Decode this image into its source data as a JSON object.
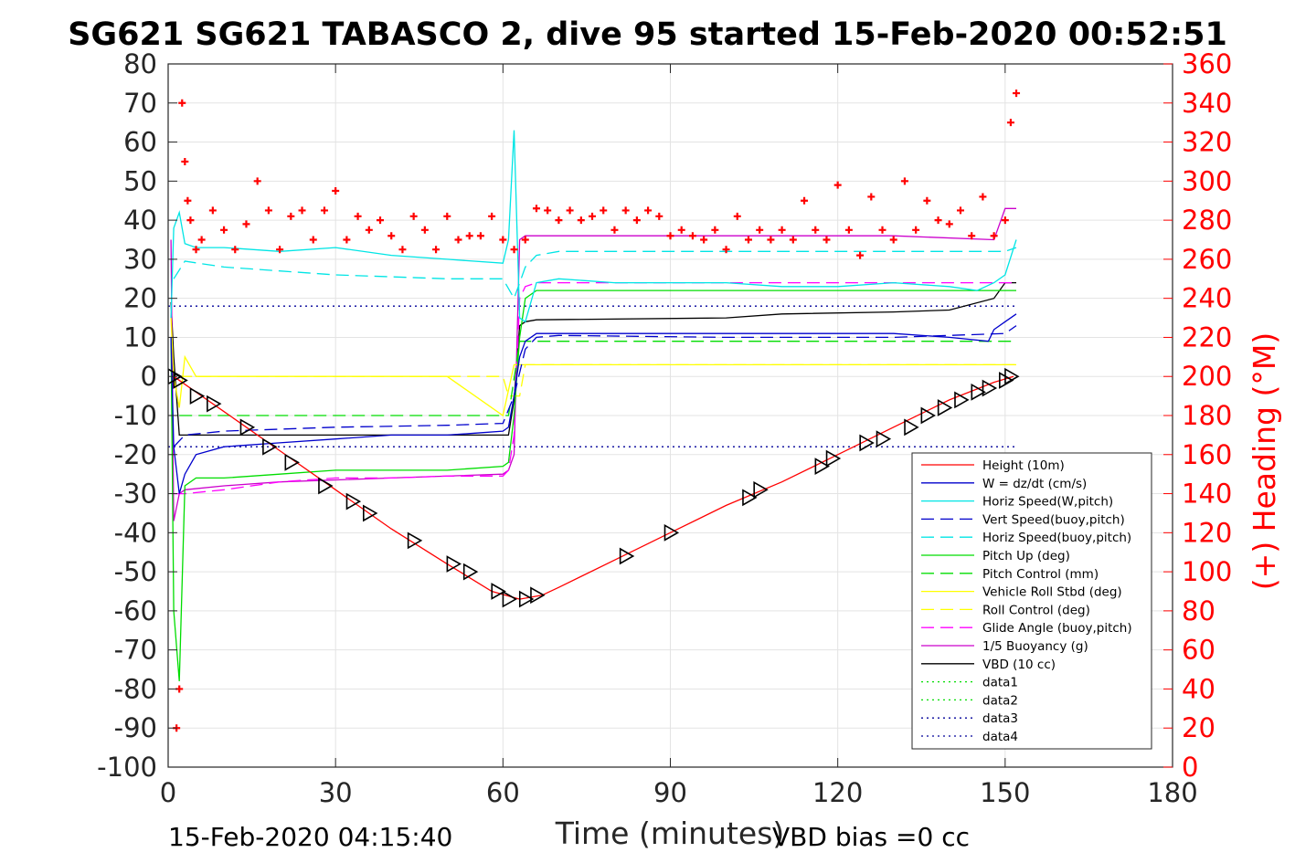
{
  "chart_data": {
    "type": "line",
    "title": "SG621 SG621 TABASCO 2, dive 95 started 15-Feb-2020 00:52:51",
    "xlabel": "Time (minutes)",
    "ylabel": "",
    "y2label": "(+) Heading (°M)",
    "xlim": [
      0,
      180
    ],
    "ylim": [
      -100,
      80
    ],
    "y2lim": [
      0,
      360
    ],
    "xticks": [
      "0",
      "30",
      "60",
      "90",
      "120",
      "150",
      "180"
    ],
    "yticks": [
      "80",
      "70",
      "60",
      "50",
      "40",
      "30",
      "20",
      "10",
      "0",
      "-10",
      "-20",
      "-30",
      "-40",
      "-50",
      "-60",
      "-70",
      "-80",
      "-90",
      "-100"
    ],
    "y2ticks": [
      "360",
      "340",
      "320",
      "300",
      "280",
      "260",
      "240",
      "220",
      "200",
      "180",
      "160",
      "140",
      "120",
      "100",
      "80",
      "60",
      "40",
      "20",
      "0"
    ],
    "grid": true,
    "legend_position": "bottom-right",
    "series": [
      {
        "name": "Height (10m)",
        "color": "#ff0000",
        "style": "solid",
        "x": [
          1,
          3,
          6,
          10,
          14,
          20,
          30,
          40,
          50,
          58,
          63,
          67,
          70,
          80,
          90,
          100,
          110,
          120,
          130,
          140,
          148,
          151.5
        ],
        "y": [
          0,
          -2,
          -5,
          -9,
          -13,
          -19,
          -29,
          -39,
          -48,
          -55,
          -57,
          -56,
          -54,
          -47,
          -40,
          -33,
          -27,
          -20,
          -13,
          -6,
          -1.5,
          0
        ]
      },
      {
        "name": "W = dz/dt (cm/s)",
        "color": "#0000cc",
        "style": "solid",
        "x": [
          0.5,
          1,
          2,
          3,
          5,
          10,
          20,
          30,
          40,
          50,
          55,
          60,
          61,
          62,
          63,
          64,
          66,
          70,
          80,
          90,
          100,
          110,
          120,
          130,
          140,
          147,
          148,
          150,
          152
        ],
        "y": [
          10,
          -18,
          -30,
          -25,
          -20,
          -18,
          -17,
          -16,
          -15,
          -15,
          -14.5,
          -14,
          -13,
          -5,
          5,
          9,
          11,
          11,
          11,
          11,
          11,
          11,
          11,
          11,
          10,
          9,
          12,
          14,
          16
        ]
      },
      {
        "name": "Horiz Speed(W,pitch)",
        "color": "#00e5e5",
        "style": "solid",
        "x": [
          0.5,
          1,
          2,
          3,
          5,
          10,
          20,
          30,
          40,
          50,
          60,
          61,
          62,
          63,
          64,
          66,
          70,
          80,
          90,
          100,
          110,
          120,
          130,
          140,
          145,
          148,
          150,
          152
        ],
        "y": [
          15,
          38,
          42,
          34,
          33,
          33,
          32,
          33,
          31,
          30,
          29,
          35,
          63,
          15,
          14,
          24,
          25,
          24,
          24,
          24,
          23,
          23,
          24,
          23,
          22,
          24,
          26,
          35
        ]
      },
      {
        "name": "Vert Speed(buoy,pitch)",
        "color": "#0000cc",
        "style": "dashed",
        "x": [
          1,
          3,
          10,
          30,
          50,
          60,
          62,
          64,
          66,
          70,
          100,
          130,
          150,
          152
        ],
        "y": [
          -18,
          -15,
          -14,
          -13,
          -12.5,
          -12,
          -5,
          7,
          10,
          10.5,
          10,
          10,
          11,
          13
        ]
      },
      {
        "name": "Horiz Speed(buoy,pitch)",
        "color": "#00e5e5",
        "style": "dashed",
        "x": [
          1,
          3,
          10,
          20,
          30,
          40,
          50,
          60,
          62,
          64,
          66,
          70,
          100,
          130,
          150,
          152
        ],
        "y": [
          25,
          29.5,
          28,
          27,
          26,
          25.5,
          25,
          25,
          20,
          28,
          31,
          32,
          32,
          32,
          32,
          33
        ]
      },
      {
        "name": "Pitch Up (deg)",
        "color": "#00dd00",
        "style": "solid",
        "x": [
          0.5,
          1,
          2,
          3,
          5,
          10,
          20,
          30,
          40,
          50,
          60,
          61,
          62,
          63,
          64,
          66,
          70,
          100,
          130,
          150,
          152
        ],
        "y": [
          10,
          -60,
          -78,
          -28,
          -26,
          -26,
          -25,
          -24,
          -24,
          -24,
          -23,
          -22,
          -10,
          10,
          20,
          22,
          22,
          22,
          22,
          22,
          22
        ]
      },
      {
        "name": "Pitch Control (mm)",
        "color": "#00dd00",
        "style": "dashed",
        "x": [
          2,
          3,
          60,
          61,
          63,
          64,
          152
        ],
        "y": [
          -10,
          -10,
          -10,
          -10,
          9,
          9,
          9
        ]
      },
      {
        "name": "Vehicle Roll Stbd (deg)",
        "color": "#ffff00",
        "style": "solid",
        "x": [
          0.5,
          1,
          2,
          3,
          5,
          10,
          20,
          30,
          40,
          50,
          60,
          62,
          64,
          70,
          80,
          90,
          100,
          110,
          120,
          130,
          140,
          150,
          152
        ],
        "y": [
          15,
          0,
          -8,
          5,
          0,
          0,
          0,
          0,
          0,
          0,
          -10,
          3,
          3,
          3,
          3,
          3,
          3,
          3,
          3,
          3,
          3,
          3,
          3
        ]
      },
      {
        "name": "Roll Control (deg)",
        "color": "#ffff00",
        "style": "dashed",
        "x": [
          2,
          3,
          60,
          61,
          63,
          64,
          152
        ],
        "y": [
          0,
          0,
          0,
          -5,
          -5,
          3,
          3
        ]
      },
      {
        "name": "Glide Angle (buoy,pitch)",
        "color": "#ff00ff",
        "style": "dashed",
        "x": [
          1,
          3,
          10,
          20,
          30,
          40,
          50,
          60,
          61,
          62,
          63,
          64,
          66,
          70,
          100,
          130,
          150,
          152
        ],
        "y": [
          -30,
          -30,
          -29,
          -27,
          -26,
          -26,
          -25.5,
          -25.5,
          -24,
          -15,
          20,
          23,
          24,
          24,
          24,
          24,
          24,
          24
        ]
      },
      {
        "name": "1/5 Buoyancy (g)",
        "color": "#cc00cc",
        "style": "solid",
        "x": [
          0.5,
          1,
          2,
          3,
          10,
          20,
          40,
          60,
          61,
          62,
          63,
          64,
          66,
          80,
          100,
          130,
          148,
          150,
          152
        ],
        "y": [
          35,
          -37,
          -30,
          -29,
          -28,
          -27,
          -26,
          -25,
          -24,
          -20,
          35,
          36,
          36,
          36,
          36,
          36,
          35,
          43,
          43
        ]
      },
      {
        "name": "VBD (10 cc)",
        "color": "#000000",
        "style": "solid",
        "x": [
          0.5,
          1,
          2,
          3,
          60,
          61,
          62,
          63,
          64,
          66,
          100,
          110,
          130,
          140,
          148,
          150,
          152
        ],
        "y": [
          19,
          5,
          -15,
          -15,
          -15,
          -15,
          -6,
          13,
          14,
          14.5,
          15,
          16,
          16.5,
          17,
          20,
          24,
          24
        ]
      },
      {
        "name": "data1",
        "color": "#00dd00",
        "style": "dotted",
        "x": [],
        "y": []
      },
      {
        "name": "data2",
        "color": "#00dd00",
        "style": "dotted",
        "x": [],
        "y": []
      },
      {
        "name": "data3",
        "color": "#000099",
        "style": "dotted",
        "x": [
          0,
          152
        ],
        "y": [
          18,
          18
        ]
      },
      {
        "name": "data4",
        "color": "#000099",
        "style": "dotted",
        "x": [
          0,
          152
        ],
        "y": [
          -18,
          -18
        ]
      }
    ],
    "heading": {
      "color": "#ff0000",
      "marker": "+",
      "axis": "right",
      "x": [
        1.5,
        2,
        2.5,
        3,
        3.5,
        4,
        5,
        6,
        8,
        10,
        12,
        14,
        16,
        18,
        20,
        22,
        24,
        26,
        28,
        30,
        32,
        34,
        36,
        38,
        40,
        42,
        44,
        46,
        48,
        50,
        52,
        54,
        56,
        58,
        60,
        62,
        64,
        66,
        68,
        70,
        72,
        74,
        76,
        78,
        80,
        82,
        84,
        86,
        88,
        90,
        92,
        94,
        96,
        98,
        100,
        102,
        104,
        106,
        108,
        110,
        112,
        114,
        116,
        118,
        120,
        122,
        124,
        126,
        128,
        130,
        132,
        134,
        136,
        138,
        140,
        142,
        144,
        146,
        148,
        150,
        151,
        152
      ],
      "y": [
        20,
        40,
        340,
        310,
        290,
        280,
        265,
        270,
        285,
        275,
        265,
        278,
        300,
        285,
        265,
        282,
        285,
        270,
        285,
        295,
        270,
        282,
        275,
        280,
        272,
        265,
        282,
        275,
        265,
        282,
        270,
        272,
        272,
        282,
        270,
        265,
        270,
        286,
        285,
        280,
        285,
        280,
        282,
        285,
        275,
        285,
        280,
        285,
        282,
        272,
        275,
        272,
        270,
        275,
        265,
        282,
        270,
        275,
        270,
        275,
        270,
        290,
        275,
        270,
        298,
        275,
        262,
        292,
        275,
        270,
        300,
        275,
        290,
        280,
        278,
        285,
        272,
        292,
        272,
        280,
        330,
        345
      ]
    },
    "markers": {
      "color": "#000000",
      "x": [
        1,
        2,
        5,
        8,
        14,
        18,
        22,
        28,
        33,
        36,
        44,
        51,
        54,
        59,
        61,
        64,
        66,
        82,
        90,
        104,
        106,
        117,
        119,
        125,
        128,
        133,
        136,
        139,
        142,
        145,
        147,
        150,
        151
      ],
      "y": [
        0,
        -1,
        -5,
        -7,
        -13,
        -18,
        -22,
        -28,
        -32,
        -35,
        -42,
        -48,
        -50,
        -55,
        -57,
        -57,
        -56,
        -46,
        -40,
        -31,
        -29,
        -23,
        -21,
        -17,
        -16,
        -13,
        -10,
        -8,
        -6,
        -4,
        -3,
        -1,
        0
      ]
    },
    "footer_left": "15-Feb-2020 04:15:40",
    "footer_right": "VBD bias =0 cc"
  }
}
